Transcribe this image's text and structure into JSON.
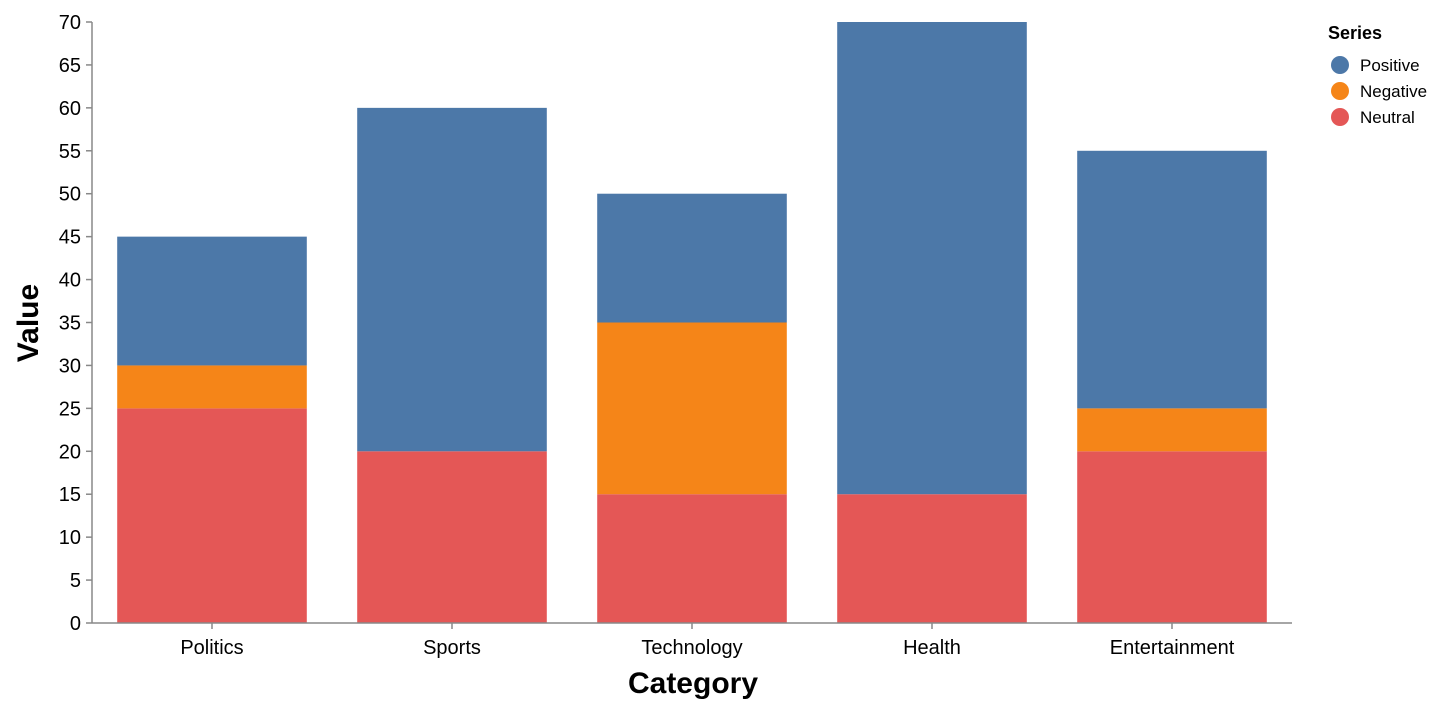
{
  "chart_data": {
    "type": "bar",
    "stacked": true,
    "title": "",
    "xlabel": "Category",
    "ylabel": "Value",
    "ylim": [
      0,
      70
    ],
    "yticks": [
      0,
      5,
      10,
      15,
      20,
      25,
      30,
      35,
      40,
      45,
      50,
      55,
      60,
      65,
      70
    ],
    "grid": false,
    "legend_title": "Series",
    "legend_position": "top-right",
    "categories": [
      "Politics",
      "Sports",
      "Technology",
      "Health",
      "Entertainment"
    ],
    "series": [
      {
        "name": "Positive",
        "color": "#4c78a8",
        "values": [
          15,
          40,
          15,
          55,
          30
        ]
      },
      {
        "name": "Negative",
        "color": "#f58518",
        "values": [
          5,
          0,
          20,
          0,
          5
        ]
      },
      {
        "name": "Neutral",
        "color": "#e45756",
        "values": [
          25,
          20,
          15,
          15,
          20
        ]
      }
    ],
    "stack_order_bottom_to_top": [
      "Neutral",
      "Negative",
      "Positive"
    ]
  }
}
